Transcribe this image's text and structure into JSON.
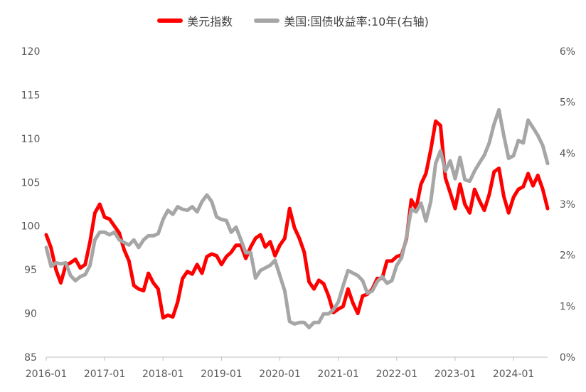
{
  "chart_data": {
    "type": "line",
    "title": "",
    "legend_position": "top",
    "grid": false,
    "x_axis": {
      "range": [
        "2016-01",
        "2024-08"
      ],
      "ticks": [
        "2016-01",
        "2017-01",
        "2018-01",
        "2019-01",
        "2020-01",
        "2021-01",
        "2022-01",
        "2023-01",
        "2024-01"
      ]
    },
    "y_left": {
      "range": [
        85,
        120
      ],
      "ticks": [
        "85",
        "90",
        "95",
        "100",
        "105",
        "110",
        "115",
        "120"
      ]
    },
    "y_right": {
      "range": [
        0,
        6
      ],
      "ticks": [
        "0%",
        "1%",
        "2%",
        "3%",
        "4%",
        "5%",
        "6%"
      ]
    },
    "series": [
      {
        "name": "美元指数",
        "color": "#ff0000",
        "axis": "left",
        "points": [
          [
            "2016-01",
            99.0
          ],
          [
            "2016-02",
            97.5
          ],
          [
            "2016-03",
            95.0
          ],
          [
            "2016-04",
            93.5
          ],
          [
            "2016-05",
            95.5
          ],
          [
            "2016-06",
            95.8
          ],
          [
            "2016-07",
            96.2
          ],
          [
            "2016-08",
            95.2
          ],
          [
            "2016-09",
            95.6
          ],
          [
            "2016-10",
            98.2
          ],
          [
            "2016-11",
            101.5
          ],
          [
            "2016-12",
            102.5
          ],
          [
            "2017-01",
            101.0
          ],
          [
            "2017-02",
            100.8
          ],
          [
            "2017-03",
            100.0
          ],
          [
            "2017-04",
            99.2
          ],
          [
            "2017-05",
            97.3
          ],
          [
            "2017-06",
            96.0
          ],
          [
            "2017-07",
            93.2
          ],
          [
            "2017-08",
            92.8
          ],
          [
            "2017-09",
            92.6
          ],
          [
            "2017-10",
            94.6
          ],
          [
            "2017-11",
            93.5
          ],
          [
            "2017-12",
            92.8
          ],
          [
            "2018-01",
            89.5
          ],
          [
            "2018-02",
            89.8
          ],
          [
            "2018-03",
            89.6
          ],
          [
            "2018-04",
            91.3
          ],
          [
            "2018-05",
            94.0
          ],
          [
            "2018-06",
            94.8
          ],
          [
            "2018-07",
            94.5
          ],
          [
            "2018-08",
            95.6
          ],
          [
            "2018-09",
            94.6
          ],
          [
            "2018-10",
            96.5
          ],
          [
            "2018-11",
            96.8
          ],
          [
            "2018-12",
            96.6
          ],
          [
            "2019-01",
            95.6
          ],
          [
            "2019-02",
            96.5
          ],
          [
            "2019-03",
            97.0
          ],
          [
            "2019-04",
            97.8
          ],
          [
            "2019-05",
            97.8
          ],
          [
            "2019-06",
            96.3
          ],
          [
            "2019-07",
            97.6
          ],
          [
            "2019-08",
            98.6
          ],
          [
            "2019-09",
            99.0
          ],
          [
            "2019-10",
            97.6
          ],
          [
            "2019-11",
            98.2
          ],
          [
            "2019-12",
            96.6
          ],
          [
            "2020-01",
            97.8
          ],
          [
            "2020-02",
            98.6
          ],
          [
            "2020-03",
            102.0
          ],
          [
            "2020-04",
            99.8
          ],
          [
            "2020-05",
            98.6
          ],
          [
            "2020-06",
            97.0
          ],
          [
            "2020-07",
            93.6
          ],
          [
            "2020-08",
            92.8
          ],
          [
            "2020-09",
            93.8
          ],
          [
            "2020-10",
            93.4
          ],
          [
            "2020-11",
            92.0
          ],
          [
            "2020-12",
            90.1
          ],
          [
            "2021-01",
            90.5
          ],
          [
            "2021-02",
            90.8
          ],
          [
            "2021-03",
            92.8
          ],
          [
            "2021-04",
            91.2
          ],
          [
            "2021-05",
            90.0
          ],
          [
            "2021-06",
            92.0
          ],
          [
            "2021-07",
            92.2
          ],
          [
            "2021-08",
            92.8
          ],
          [
            "2021-09",
            94.0
          ],
          [
            "2021-10",
            94.0
          ],
          [
            "2021-11",
            96.0
          ],
          [
            "2021-12",
            96.0
          ],
          [
            "2022-01",
            96.5
          ],
          [
            "2022-02",
            96.7
          ],
          [
            "2022-03",
            98.5
          ],
          [
            "2022-04",
            103.0
          ],
          [
            "2022-05",
            102.0
          ],
          [
            "2022-06",
            104.8
          ],
          [
            "2022-07",
            106.0
          ],
          [
            "2022-08",
            108.7
          ],
          [
            "2022-09",
            112.0
          ],
          [
            "2022-10",
            111.5
          ],
          [
            "2022-11",
            105.5
          ],
          [
            "2022-12",
            103.8
          ],
          [
            "2023-01",
            102.0
          ],
          [
            "2023-02",
            104.8
          ],
          [
            "2023-03",
            102.5
          ],
          [
            "2023-04",
            101.5
          ],
          [
            "2023-05",
            104.2
          ],
          [
            "2023-06",
            102.9
          ],
          [
            "2023-07",
            101.8
          ],
          [
            "2023-08",
            103.6
          ],
          [
            "2023-09",
            106.2
          ],
          [
            "2023-10",
            106.6
          ],
          [
            "2023-11",
            103.4
          ],
          [
            "2023-12",
            101.5
          ],
          [
            "2024-01",
            103.3
          ],
          [
            "2024-02",
            104.2
          ],
          [
            "2024-03",
            104.5
          ],
          [
            "2024-04",
            106.0
          ],
          [
            "2024-05",
            104.6
          ],
          [
            "2024-06",
            105.8
          ],
          [
            "2024-07",
            104.2
          ],
          [
            "2024-08",
            102.0
          ]
        ]
      },
      {
        "name": "美国:国债收益率:10年(右轴)",
        "color": "#a6a6a6",
        "axis": "right",
        "points": [
          [
            "2016-01",
            2.15
          ],
          [
            "2016-02",
            1.78
          ],
          [
            "2016-03",
            1.85
          ],
          [
            "2016-04",
            1.83
          ],
          [
            "2016-05",
            1.85
          ],
          [
            "2016-06",
            1.6
          ],
          [
            "2016-07",
            1.5
          ],
          [
            "2016-08",
            1.58
          ],
          [
            "2016-09",
            1.62
          ],
          [
            "2016-10",
            1.8
          ],
          [
            "2016-11",
            2.3
          ],
          [
            "2016-12",
            2.45
          ],
          [
            "2017-01",
            2.45
          ],
          [
            "2017-02",
            2.4
          ],
          [
            "2017-03",
            2.45
          ],
          [
            "2017-04",
            2.3
          ],
          [
            "2017-05",
            2.25
          ],
          [
            "2017-06",
            2.2
          ],
          [
            "2017-07",
            2.3
          ],
          [
            "2017-08",
            2.15
          ],
          [
            "2017-09",
            2.3
          ],
          [
            "2017-10",
            2.38
          ],
          [
            "2017-11",
            2.38
          ],
          [
            "2017-12",
            2.42
          ],
          [
            "2018-01",
            2.7
          ],
          [
            "2018-02",
            2.88
          ],
          [
            "2018-03",
            2.8
          ],
          [
            "2018-04",
            2.95
          ],
          [
            "2018-05",
            2.9
          ],
          [
            "2018-06",
            2.88
          ],
          [
            "2018-07",
            2.95
          ],
          [
            "2018-08",
            2.85
          ],
          [
            "2018-09",
            3.05
          ],
          [
            "2018-10",
            3.18
          ],
          [
            "2018-11",
            3.05
          ],
          [
            "2018-12",
            2.75
          ],
          [
            "2019-01",
            2.7
          ],
          [
            "2019-02",
            2.68
          ],
          [
            "2019-03",
            2.45
          ],
          [
            "2019-04",
            2.55
          ],
          [
            "2019-05",
            2.3
          ],
          [
            "2019-06",
            2.05
          ],
          [
            "2019-07",
            2.05
          ],
          [
            "2019-08",
            1.55
          ],
          [
            "2019-09",
            1.7
          ],
          [
            "2019-10",
            1.75
          ],
          [
            "2019-11",
            1.8
          ],
          [
            "2019-12",
            1.9
          ],
          [
            "2020-01",
            1.6
          ],
          [
            "2020-02",
            1.3
          ],
          [
            "2020-03",
            0.7
          ],
          [
            "2020-04",
            0.65
          ],
          [
            "2020-05",
            0.68
          ],
          [
            "2020-06",
            0.68
          ],
          [
            "2020-07",
            0.58
          ],
          [
            "2020-08",
            0.68
          ],
          [
            "2020-09",
            0.68
          ],
          [
            "2020-10",
            0.85
          ],
          [
            "2020-11",
            0.85
          ],
          [
            "2020-12",
            0.93
          ],
          [
            "2021-01",
            1.08
          ],
          [
            "2021-02",
            1.4
          ],
          [
            "2021-03",
            1.7
          ],
          [
            "2021-04",
            1.65
          ],
          [
            "2021-05",
            1.6
          ],
          [
            "2021-06",
            1.5
          ],
          [
            "2021-07",
            1.25
          ],
          [
            "2021-08",
            1.3
          ],
          [
            "2021-09",
            1.48
          ],
          [
            "2021-10",
            1.58
          ],
          [
            "2021-11",
            1.45
          ],
          [
            "2021-12",
            1.5
          ],
          [
            "2022-01",
            1.8
          ],
          [
            "2022-02",
            1.95
          ],
          [
            "2022-03",
            2.35
          ],
          [
            "2022-04",
            2.9
          ],
          [
            "2022-05",
            2.85
          ],
          [
            "2022-06",
            3.02
          ],
          [
            "2022-07",
            2.67
          ],
          [
            "2022-08",
            3.05
          ],
          [
            "2022-09",
            3.8
          ],
          [
            "2022-10",
            4.05
          ],
          [
            "2022-11",
            3.65
          ],
          [
            "2022-12",
            3.85
          ],
          [
            "2023-01",
            3.5
          ],
          [
            "2023-02",
            3.92
          ],
          [
            "2023-03",
            3.48
          ],
          [
            "2023-04",
            3.45
          ],
          [
            "2023-05",
            3.65
          ],
          [
            "2023-06",
            3.81
          ],
          [
            "2023-07",
            3.96
          ],
          [
            "2023-08",
            4.2
          ],
          [
            "2023-09",
            4.57
          ],
          [
            "2023-10",
            4.85
          ],
          [
            "2023-11",
            4.35
          ],
          [
            "2023-12",
            3.9
          ],
          [
            "2024-01",
            3.95
          ],
          [
            "2024-02",
            4.25
          ],
          [
            "2024-03",
            4.2
          ],
          [
            "2024-04",
            4.65
          ],
          [
            "2024-05",
            4.5
          ],
          [
            "2024-06",
            4.35
          ],
          [
            "2024-07",
            4.15
          ],
          [
            "2024-08",
            3.8
          ]
        ]
      }
    ]
  }
}
